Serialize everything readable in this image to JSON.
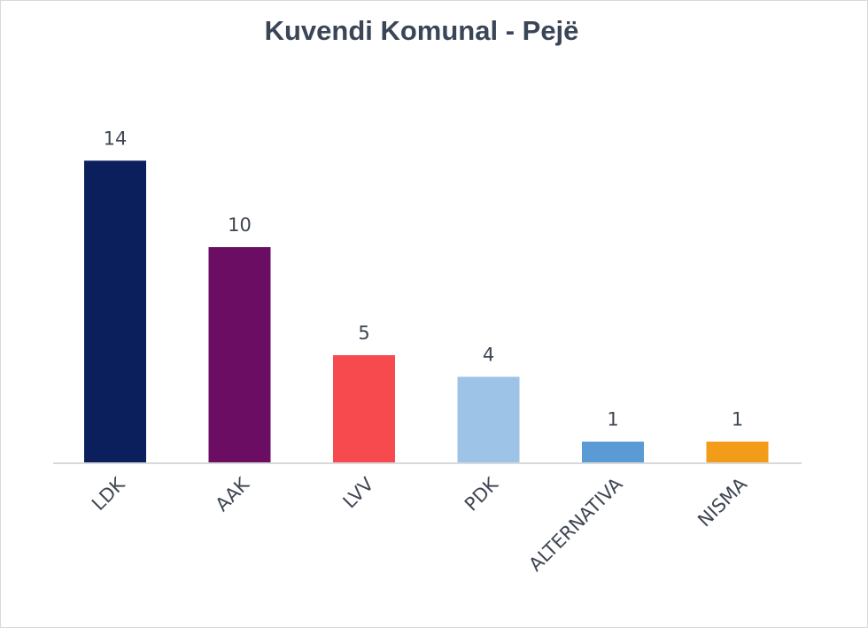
{
  "chart_data": {
    "type": "bar",
    "title": "Kuvendi Komunal - Pejë",
    "categories": [
      "LDK",
      "AAK",
      "LVV",
      "PDK",
      "ALTERNATIVA",
      "NISMA"
    ],
    "values": [
      14,
      10,
      5,
      4,
      1,
      1
    ],
    "bar_colors": [
      "#0a1f5c",
      "#6a0d63",
      "#f64a4f",
      "#9dc3e6",
      "#5b9bd5",
      "#f39c1a"
    ],
    "axis_color": "#d9d9d9",
    "xlabel": "",
    "ylabel": "",
    "ylim": [
      0,
      14
    ],
    "grid": false,
    "legend": "none"
  }
}
